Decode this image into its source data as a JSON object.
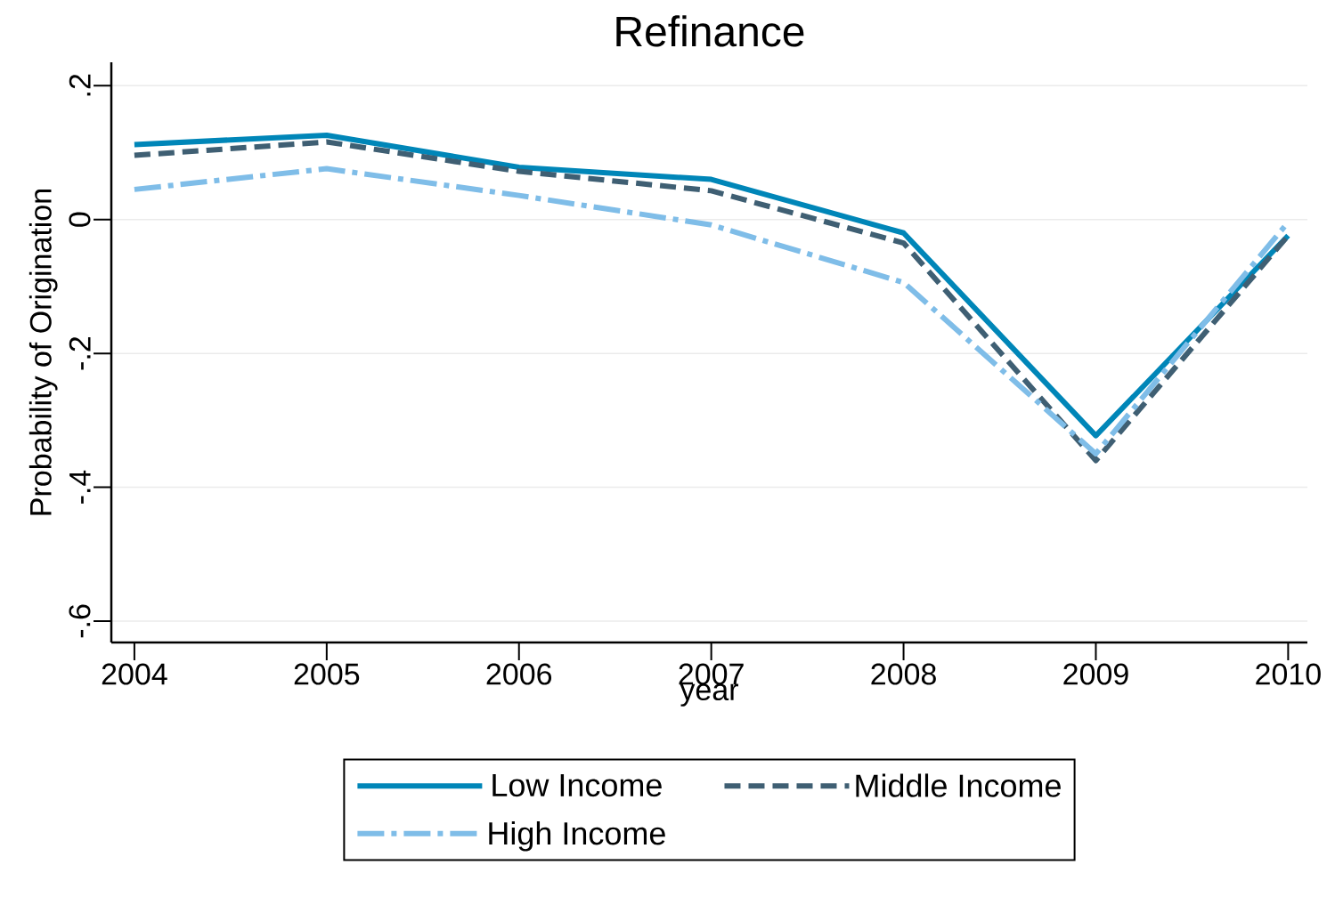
{
  "chart_data": {
    "type": "line",
    "title": "Refinance",
    "xlabel": "year",
    "ylabel": "Probability of Origination",
    "x": [
      2004,
      2005,
      2006,
      2007,
      2008,
      2009,
      2010
    ],
    "xlim": [
      2003.88,
      2010.1
    ],
    "xticks": [
      2004,
      2005,
      2006,
      2007,
      2008,
      2009,
      2010
    ],
    "ylim": [
      -0.632,
      0.235
    ],
    "yticks": [
      {
        "value": -0.6,
        "label": "-.6"
      },
      {
        "value": -0.4,
        "label": "-.4"
      },
      {
        "value": -0.2,
        "label": "-.2"
      },
      {
        "value": 0,
        "label": "0"
      },
      {
        "value": 0.2,
        "label": ".2"
      }
    ],
    "grid": "y",
    "legend": "bottom",
    "series": [
      {
        "name": "Low Income",
        "color": "#0086b8",
        "line_style": "solid",
        "values": [
          0.112,
          0.126,
          0.078,
          0.06,
          -0.02,
          -0.323,
          -0.024
        ]
      },
      {
        "name": "Middle Income",
        "color": "#3f5f73",
        "line_style": "dashed",
        "values": [
          0.096,
          0.116,
          0.072,
          0.043,
          -0.035,
          -0.36,
          -0.024
        ]
      },
      {
        "name": "High Income",
        "color": "#7fbde8",
        "line_style": "dashdot",
        "values": [
          0.045,
          0.076,
          0.036,
          -0.008,
          -0.094,
          -0.35,
          -0.004
        ]
      }
    ]
  }
}
